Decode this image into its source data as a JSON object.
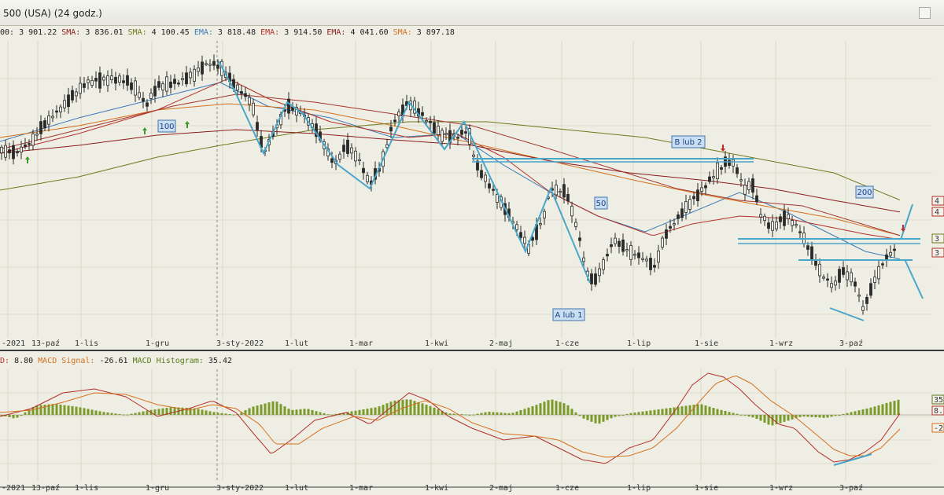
{
  "window": {
    "title": "500 (USA) (24 godz.)"
  },
  "indicator_legend": [
    {
      "label": "",
      "value": "00: 3 901.22",
      "color": "#2e7d32"
    },
    {
      "label": "SMA:",
      "value": "3 836.01",
      "color": "#8c1d1d"
    },
    {
      "label": "SMA:",
      "value": "4 100.45",
      "color": "#6f7a1c"
    },
    {
      "label": "EMA:",
      "value": "3 818.48",
      "color": "#3b7bb5"
    },
    {
      "label": "EMA:",
      "value": "3 914.50",
      "color": "#b3302a"
    },
    {
      "label": "EMA:",
      "value": "4 041.60",
      "color": "#8c1d1d"
    },
    {
      "label": "SMA:",
      "value": "3 897.18",
      "color": "#d4701d"
    }
  ],
  "macd_legend": [
    {
      "label": "D:",
      "value": "8.80",
      "color": "#b3302a"
    },
    {
      "label": "MACD Signal:",
      "value": "-26.61",
      "color": "#d4701d"
    },
    {
      "label": "MACD Histogram:",
      "value": "35.42",
      "color": "#5b7a1c"
    }
  ],
  "x_axis_labels": [
    "-2021",
    "13-paź",
    "1-lis",
    "1-gru",
    "3-sty-2022",
    "1-lut",
    "1-mar",
    "1-kwi",
    "2-maj",
    "1-cze",
    "1-lip",
    "1-sie",
    "1-wrz",
    "3-paź"
  ],
  "annotations": {
    "ma100": "100",
    "ma50": "50",
    "ma200": "200",
    "wave_b": "B lub 2",
    "wave_a": "A lub 1"
  },
  "right_scale_badges": [
    "4",
    "4",
    "3",
    "3"
  ],
  "macd_right_badges": [
    "35",
    "8.",
    "-2"
  ],
  "colors": {
    "background": "#efeee4",
    "candle": "#2a2a2a",
    "bullish_arrow": "#3c9a2a",
    "bearish_arrow": "#c22a2a",
    "trendline": "#4aa6c9",
    "histogram": "#7a9a2a"
  },
  "chart_data": [
    {
      "type": "candlestick",
      "title": "500 (USA) (24 godz.)",
      "x_axis": [
        "-2021",
        "13-paź",
        "1-lis",
        "1-gru",
        "3-sty-2022",
        "1-lut",
        "1-mar",
        "1-kwi",
        "2-maj",
        "1-cze",
        "1-lip",
        "1-sie",
        "1-wrz",
        "3-paź"
      ],
      "y_axis": "price (hidden)",
      "series": [
        {
          "name": "SMA 3 836.01",
          "kind": "moving-average",
          "color": "#8c1d1d",
          "last": 3836.01
        },
        {
          "name": "SMA 4 100.45",
          "kind": "moving-average",
          "color": "#6f7a1c",
          "last": 4100.45
        },
        {
          "name": "EMA 3 818.48",
          "kind": "moving-average",
          "color": "#3b7bb5",
          "last": 3818.48
        },
        {
          "name": "EMA 3 914.50",
          "kind": "moving-average",
          "color": "#b3302a",
          "last": 3914.5
        },
        {
          "name": "EMA 4 041.60",
          "kind": "moving-average",
          "color": "#8c1d1d",
          "last": 4041.6
        },
        {
          "name": "SMA 3 897.18",
          "kind": "moving-average",
          "color": "#d4701d",
          "last": 3897.18
        }
      ],
      "close_last": 3901.22,
      "annotations": [
        "100",
        "50",
        "200",
        "B lub 2",
        "A lub 1"
      ],
      "grid": true
    },
    {
      "type": "macd",
      "x_axis": [
        "-2021",
        "13-paź",
        "1-lis",
        "1-gru",
        "3-sty-2022",
        "1-lut",
        "1-mar",
        "1-kwi",
        "2-maj",
        "1-cze",
        "1-lip",
        "1-sie",
        "1-wrz",
        "3-paź"
      ],
      "series": [
        {
          "name": "MACD",
          "color": "#b3302a",
          "last": 8.8
        },
        {
          "name": "MACD Signal",
          "color": "#d4701d",
          "last": -26.61
        },
        {
          "name": "MACD Histogram",
          "color": "#7a9a2a",
          "last": 35.42
        }
      ],
      "grid": true
    }
  ]
}
